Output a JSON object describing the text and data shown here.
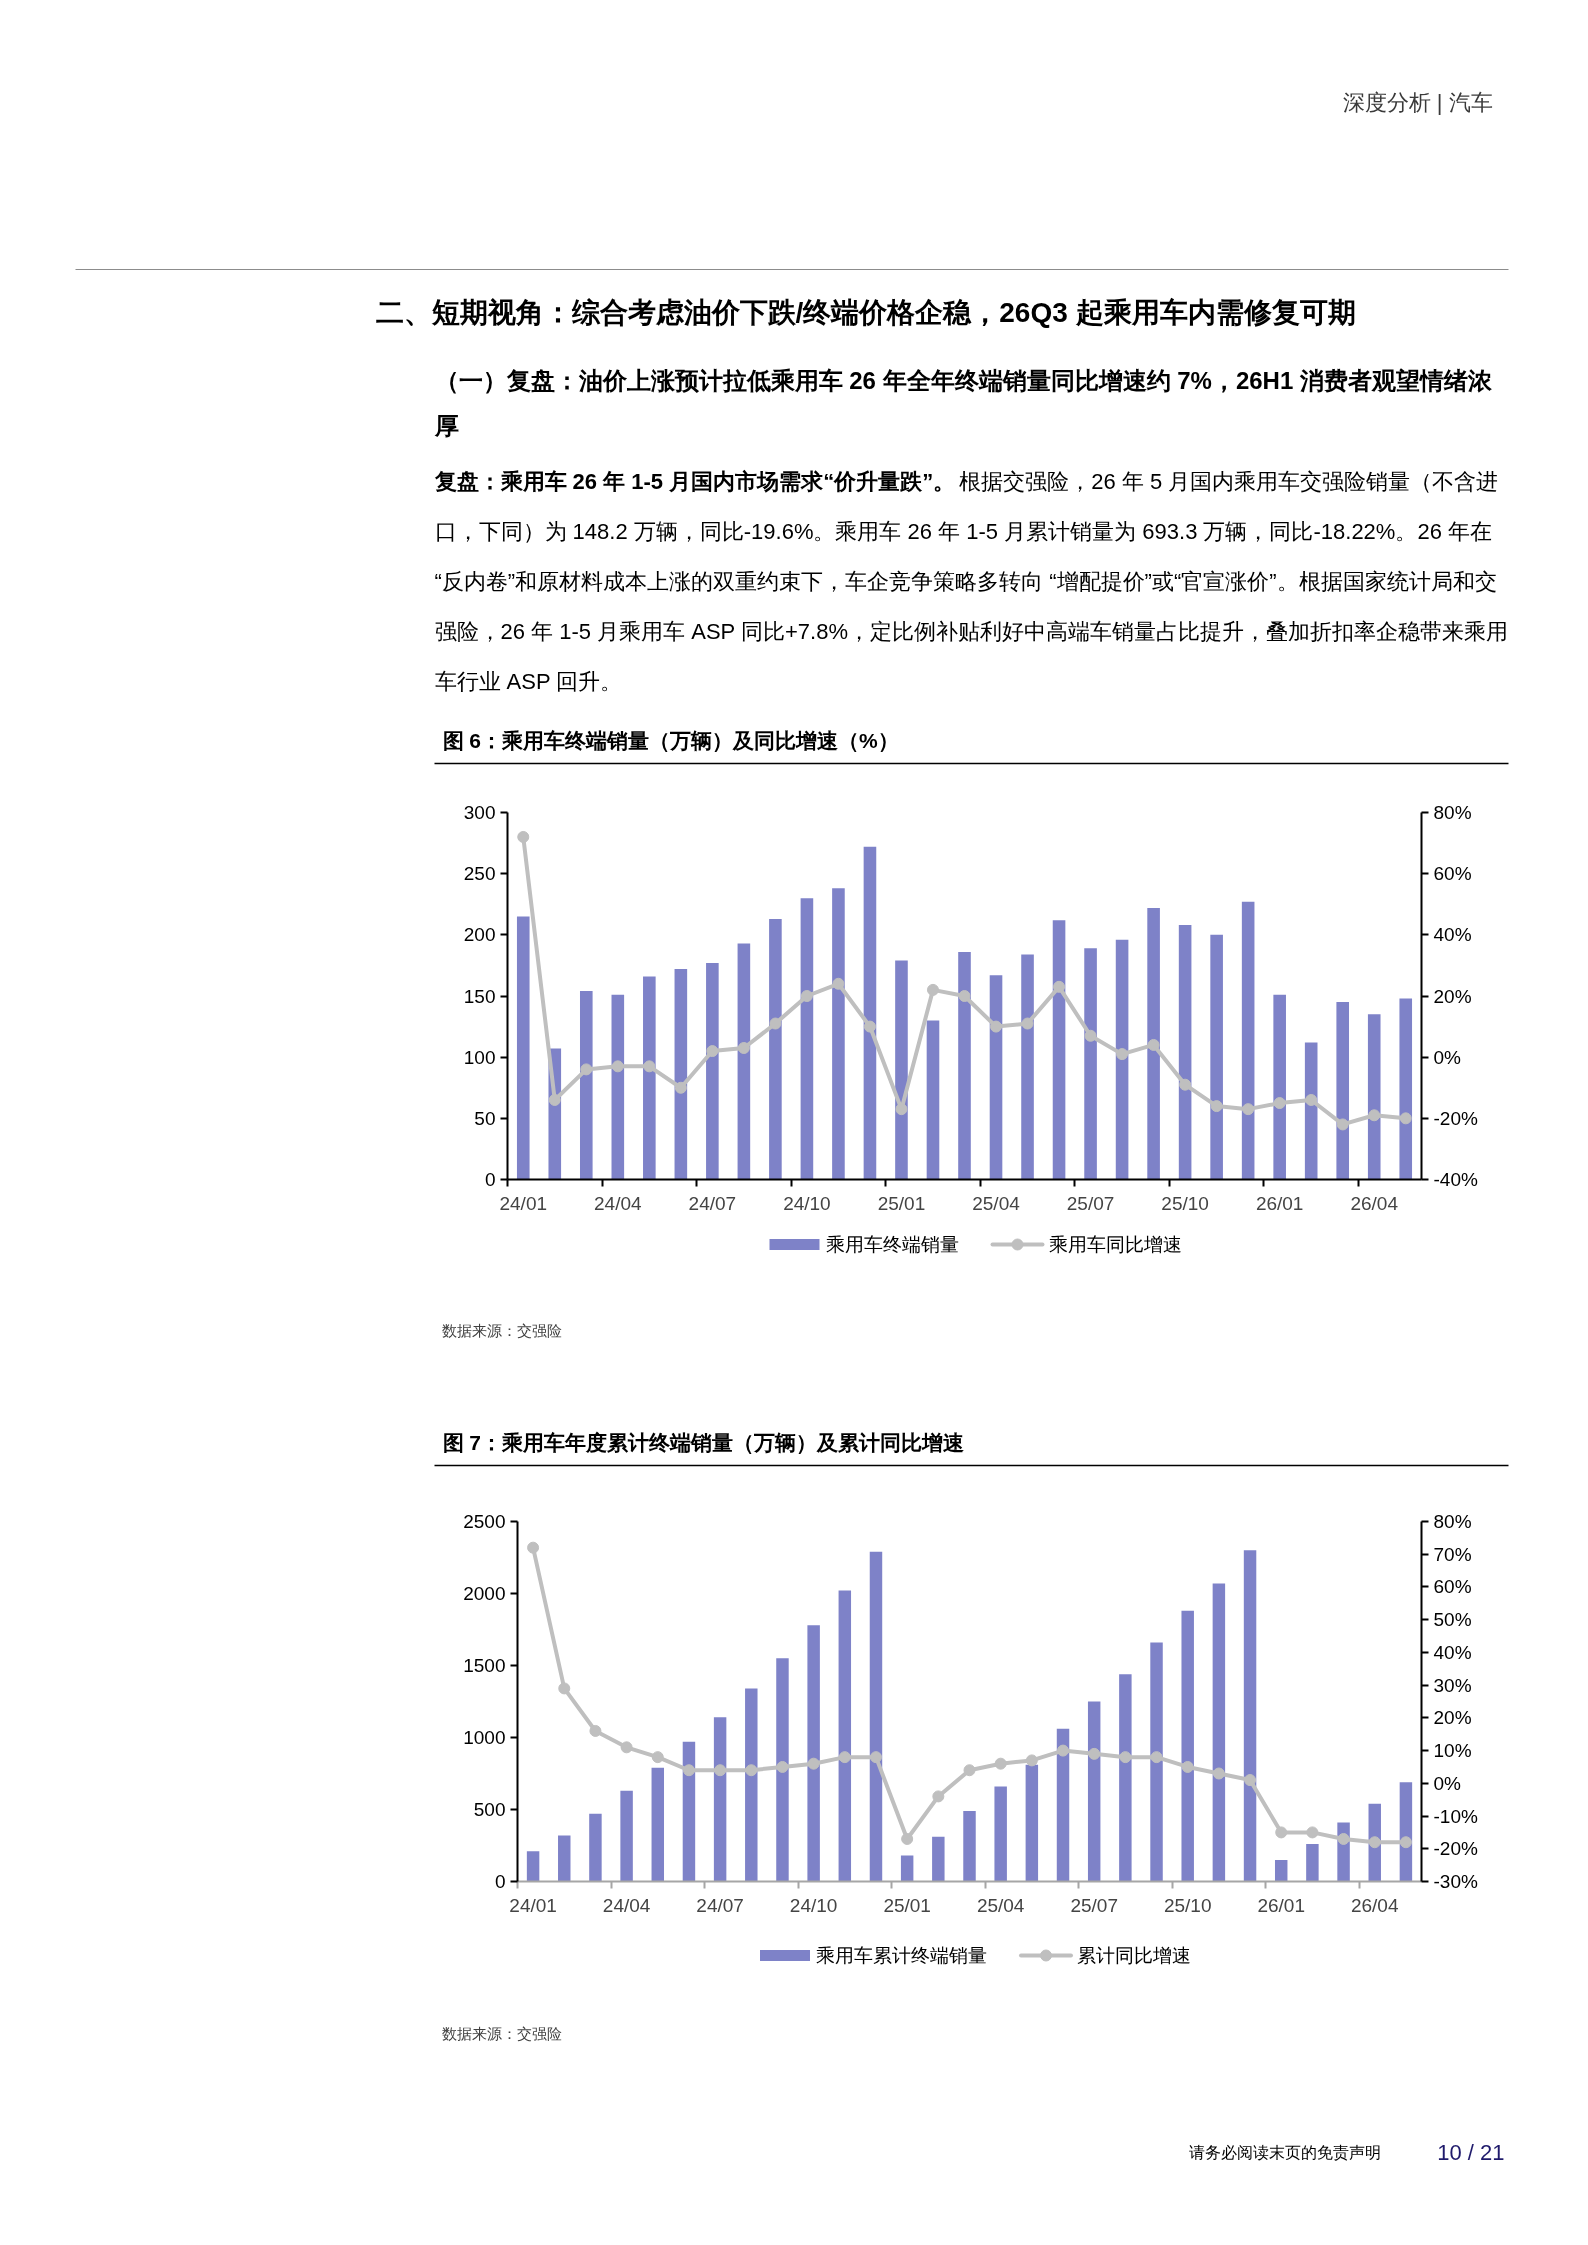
{
  "chart_data": [
    {
      "type": "bar",
      "title": "图 6：乘用车终端销量（万辆）及同比增速（%）",
      "annotations": [
        "深度分析 | 汽车",
        "二、短期视角：综合考虑油价下跌/终端价格企稳，26Q3 起乘用车内需修复可期",
        "（一）复盘：油价上涨预计拉低乘用车 26 年全年终端销量同比增速约 7%，26H1 消费者观望情绪浓厚",
        "复盘：乘用车 26 年 1-5 月国内市场需求“价升量跌”。",
        "根据交强险，26 年 5 月国内乘用车交强险销量（不含进口，下同）为 148.2 万辆，同比-19.6%。乘用车 26 年 1-5 月累计销量为 693.3 万辆，同比-18.22%。26 年在“反内卷”和原材料成本上涨的双重约束下，车企竞争策略多转向 “增配提价”或“官宣涨价”。根据国家统计局和交强险，26 年 1-5 月乘用车 ASP 同比+7.8%，定比例补贴利好中高端车销量占比提升，叠加折扣率企稳带来乘用车行业 ASP 回升。",
        "数据来源：交强险"
      ],
      "categories": [
        "24/01",
        null,
        null,
        "24/04",
        null,
        null,
        "24/07",
        null,
        null,
        "24/10",
        null,
        null,
        "25/01",
        null,
        null,
        "25/04",
        null,
        null,
        "25/07",
        null,
        null,
        "25/10",
        null,
        null,
        "26/01",
        null,
        null,
        "26/04",
        null
      ],
      "series": [
        {
          "name": "乘用车终端销量",
          "color": "#7e82c8",
          "values": [
            215,
            107,
            154,
            151,
            166,
            172,
            177,
            193,
            213,
            230,
            238,
            272,
            179,
            130,
            186,
            167,
            184,
            212,
            189,
            196,
            222,
            208,
            200,
            227,
            151,
            112,
            145,
            135,
            148
          ]
        },
        {
          "name": "乘用车同比增速",
          "type": "line",
          "axis": "y2",
          "color": "#bfbfbf",
          "marker": "circle",
          "values": [
            72,
            -14,
            -4,
            -3,
            -3,
            -10,
            2,
            3,
            11,
            20,
            24,
            10,
            -17,
            22,
            20,
            10,
            11,
            23,
            7,
            1,
            4,
            -9,
            -16,
            -17,
            -15,
            -14,
            -22,
            -19,
            -20
          ]
        }
      ],
      "ylim": [
        0,
        300
      ],
      "yticks": [
        0,
        50,
        100,
        150,
        200,
        250,
        300
      ],
      "y2lim": [
        -40,
        80
      ],
      "y2ticks": [
        {
          "value": -40,
          "label": "-40%"
        },
        {
          "value": -20,
          "label": "-20%"
        },
        {
          "value": 0,
          "label": "0%"
        },
        {
          "value": 20,
          "label": "20%"
        },
        {
          "value": 40,
          "label": "40%"
        },
        {
          "value": 60,
          "label": "60%"
        },
        {
          "value": 80,
          "label": "80%"
        }
      ],
      "legend": "bottom"
    },
    {
      "type": "bar",
      "title": "图 7：乘用车年度累计终端销量（万辆）及累计同比增速",
      "annotations": [
        "数据来源：交强险",
        "请务必阅读末页的免责声明",
        "10 / 21"
      ],
      "categories": [
        "24/01",
        null,
        null,
        "24/04",
        null,
        null,
        "24/07",
        null,
        null,
        "24/10",
        null,
        null,
        "25/01",
        null,
        null,
        "25/04",
        null,
        null,
        "25/07",
        null,
        null,
        "25/10",
        null,
        null,
        "26/01",
        null,
        null,
        "26/04",
        null
      ],
      "series": [
        {
          "name": "乘用车累计终端销量",
          "color": "#7e82c8",
          "values": [
            210,
            320,
            470,
            630,
            790,
            970,
            1140,
            1340,
            1550,
            1780,
            2020,
            2290,
            180,
            310,
            490,
            660,
            810,
            1060,
            1250,
            1440,
            1660,
            1880,
            2070,
            2300,
            150,
            260,
            410,
            540,
            690
          ]
        },
        {
          "name": "累计同比增速",
          "type": "line",
          "axis": "y2",
          "color": "#bfbfbf",
          "marker": "circle",
          "values": [
            72,
            29,
            16,
            11,
            8,
            4,
            4,
            4,
            5,
            6,
            8,
            8,
            -17,
            -4,
            4,
            6,
            7,
            10,
            9,
            8,
            8,
            5,
            3,
            1,
            -15,
            -15,
            -17,
            -18,
            -18
          ]
        }
      ],
      "ylim": [
        0,
        2500
      ],
      "yticks": [
        0,
        500,
        1000,
        1500,
        2000,
        2500
      ],
      "y2lim": [
        -30,
        80
      ],
      "y2ticks": [
        {
          "value": -30,
          "label": "-30%"
        },
        {
          "value": -20,
          "label": "-20%"
        },
        {
          "value": -10,
          "label": "-10%"
        },
        {
          "value": 0,
          "label": "0%"
        },
        {
          "value": 10,
          "label": "10%"
        },
        {
          "value": 20,
          "label": "20%"
        },
        {
          "value": 30,
          "label": "30%"
        },
        {
          "value": 40,
          "label": "40%"
        },
        {
          "value": 50,
          "label": "50%"
        },
        {
          "value": 60,
          "label": "60%"
        },
        {
          "value": 70,
          "label": "70%"
        },
        {
          "value": 80,
          "label": "80%"
        }
      ],
      "legend": "bottom"
    }
  ]
}
